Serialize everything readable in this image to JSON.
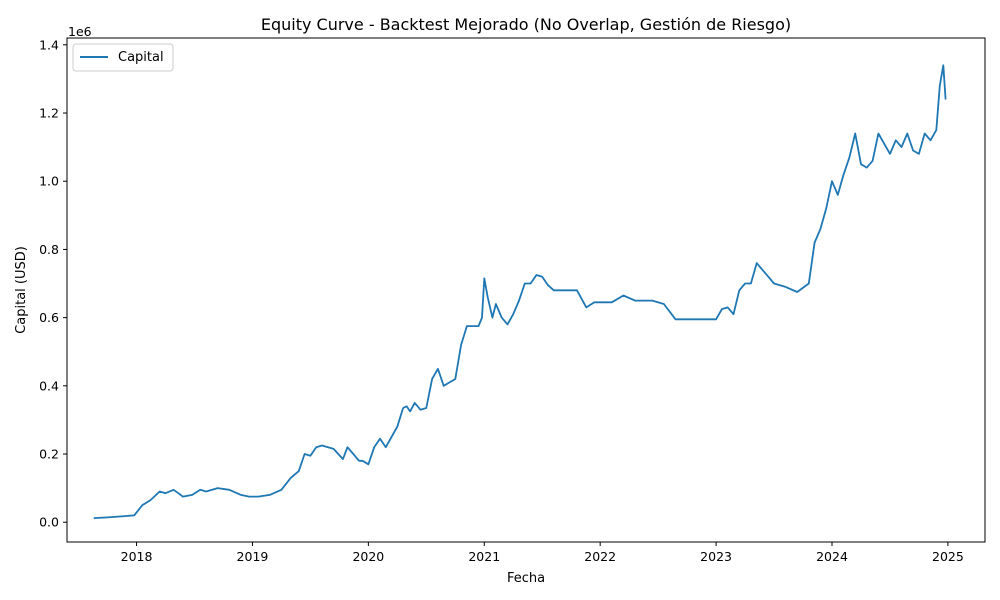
{
  "chart_data": {
    "type": "line",
    "title": "Equity Curve - Backtest Mejorado (No Overlap, Gestión de Riesgo)",
    "xlabel": "Fecha",
    "ylabel": "Capital (USD)",
    "y_offset_label": "1e6",
    "xlim": [
      2017.4,
      2025.32
    ],
    "ylim": [
      -0.058,
      1.42
    ],
    "x_ticks": [
      2018,
      2019,
      2020,
      2021,
      2022,
      2023,
      2024,
      2025
    ],
    "x_tick_labels": [
      "2018",
      "2019",
      "2020",
      "2021",
      "2022",
      "2023",
      "2024",
      "2025"
    ],
    "y_ticks": [
      0.0,
      0.2,
      0.4,
      0.6,
      0.8,
      1.0,
      1.2,
      1.4
    ],
    "y_tick_labels": [
      "0.0",
      "0.2",
      "0.4",
      "0.6",
      "0.8",
      "1.0",
      "1.2",
      "1.4"
    ],
    "grid": false,
    "legend_position": "top-left",
    "series": [
      {
        "name": "Capital",
        "color": "#1f77b4",
        "x": [
          2017.63,
          2017.75,
          2017.9,
          2017.98,
          2018.05,
          2018.12,
          2018.2,
          2018.25,
          2018.32,
          2018.36,
          2018.4,
          2018.48,
          2018.55,
          2018.6,
          2018.7,
          2018.8,
          2018.9,
          2018.97,
          2019.05,
          2019.15,
          2019.25,
          2019.33,
          2019.4,
          2019.45,
          2019.5,
          2019.55,
          2019.6,
          2019.7,
          2019.78,
          2019.82,
          2019.87,
          2019.92,
          2019.95,
          2020.0,
          2020.05,
          2020.1,
          2020.15,
          2020.2,
          2020.25,
          2020.3,
          2020.33,
          2020.36,
          2020.4,
          2020.45,
          2020.5,
          2020.55,
          2020.6,
          2020.65,
          2020.7,
          2020.75,
          2020.8,
          2020.85,
          2020.9,
          2020.95,
          2020.98,
          2021.0,
          2021.03,
          2021.07,
          2021.1,
          2021.15,
          2021.2,
          2021.25,
          2021.3,
          2021.35,
          2021.4,
          2021.45,
          2021.5,
          2021.55,
          2021.6,
          2021.7,
          2021.8,
          2021.88,
          2021.95,
          2022.1,
          2022.2,
          2022.3,
          2022.45,
          2022.55,
          2022.65,
          2022.7,
          2022.8,
          2023.0,
          2023.05,
          2023.1,
          2023.15,
          2023.2,
          2023.25,
          2023.3,
          2023.35,
          2023.4,
          2023.45,
          2023.5,
          2023.6,
          2023.7,
          2023.8,
          2023.85,
          2023.9,
          2023.95,
          2024.0,
          2024.05,
          2024.1,
          2024.15,
          2024.2,
          2024.25,
          2024.3,
          2024.35,
          2024.4,
          2024.5,
          2024.55,
          2024.6,
          2024.65,
          2024.7,
          2024.75,
          2024.8,
          2024.85,
          2024.9,
          2024.93,
          2024.96,
          2024.98
        ],
        "y": [
          0.012,
          0.014,
          0.018,
          0.02,
          0.05,
          0.065,
          0.09,
          0.085,
          0.095,
          0.085,
          0.075,
          0.08,
          0.095,
          0.09,
          0.1,
          0.095,
          0.08,
          0.075,
          0.075,
          0.08,
          0.095,
          0.13,
          0.15,
          0.2,
          0.195,
          0.22,
          0.225,
          0.215,
          0.185,
          0.22,
          0.2,
          0.18,
          0.18,
          0.17,
          0.22,
          0.245,
          0.22,
          0.25,
          0.28,
          0.335,
          0.34,
          0.325,
          0.35,
          0.33,
          0.335,
          0.42,
          0.45,
          0.4,
          0.41,
          0.42,
          0.52,
          0.575,
          0.575,
          0.575,
          0.6,
          0.715,
          0.66,
          0.6,
          0.64,
          0.6,
          0.58,
          0.61,
          0.65,
          0.7,
          0.7,
          0.725,
          0.72,
          0.695,
          0.68,
          0.68,
          0.68,
          0.63,
          0.645,
          0.645,
          0.665,
          0.65,
          0.65,
          0.64,
          0.595,
          0.595,
          0.595,
          0.595,
          0.625,
          0.63,
          0.61,
          0.68,
          0.7,
          0.7,
          0.76,
          0.74,
          0.72,
          0.7,
          0.69,
          0.675,
          0.7,
          0.82,
          0.86,
          0.92,
          1.0,
          0.96,
          1.02,
          1.07,
          1.14,
          1.05,
          1.04,
          1.06,
          1.14,
          1.08,
          1.12,
          1.1,
          1.14,
          1.09,
          1.08,
          1.14,
          1.12,
          1.15,
          1.28,
          1.34,
          1.24
        ]
      }
    ]
  }
}
